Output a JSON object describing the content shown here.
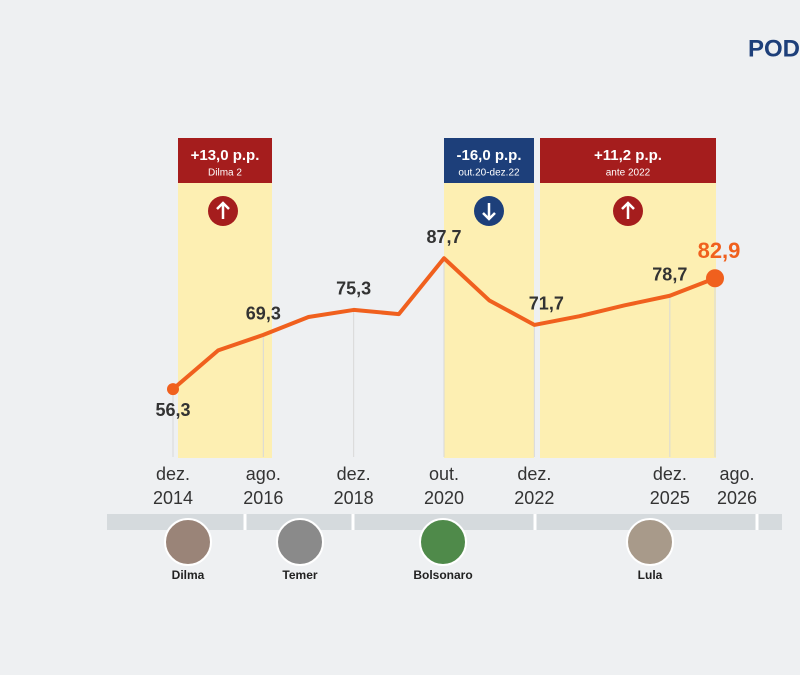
{
  "chart_data": {
    "type": "line",
    "logo": "POD",
    "categories": [
      "dez. 2014",
      null,
      "ago. 2016",
      null,
      "dez. 2018",
      null,
      "out. 2020",
      null,
      "dez. 2022",
      null,
      null,
      "dez. 2025",
      "ago. 2026"
    ],
    "series": [
      {
        "color": "#f0601e",
        "values": [
          56.3,
          65.6,
          69.3,
          73.6,
          75.3,
          74.3,
          87.7,
          77.6,
          71.7,
          73.8,
          76.4,
          78.7,
          82.9
        ],
        "value_labels": [
          "56,3",
          null,
          "69,3",
          null,
          "75,3",
          null,
          "87,7",
          null,
          "71,7",
          null,
          null,
          "78,7",
          "82,9"
        ]
      }
    ],
    "ylim": [
      40,
      100
    ],
    "periods": [
      {
        "label": "+13,0 p.p.",
        "sublabel": "Dilma 2"
      },
      {
        "label": "-16,0 p.p.",
        "sublabel": "out.20-dez.22"
      },
      {
        "label": "+11,2 p.p.",
        "sublabel": "ante 2022"
      }
    ],
    "presidents": [
      "Dilma",
      "Temer",
      "Bolsonaro",
      "Lula"
    ]
  }
}
